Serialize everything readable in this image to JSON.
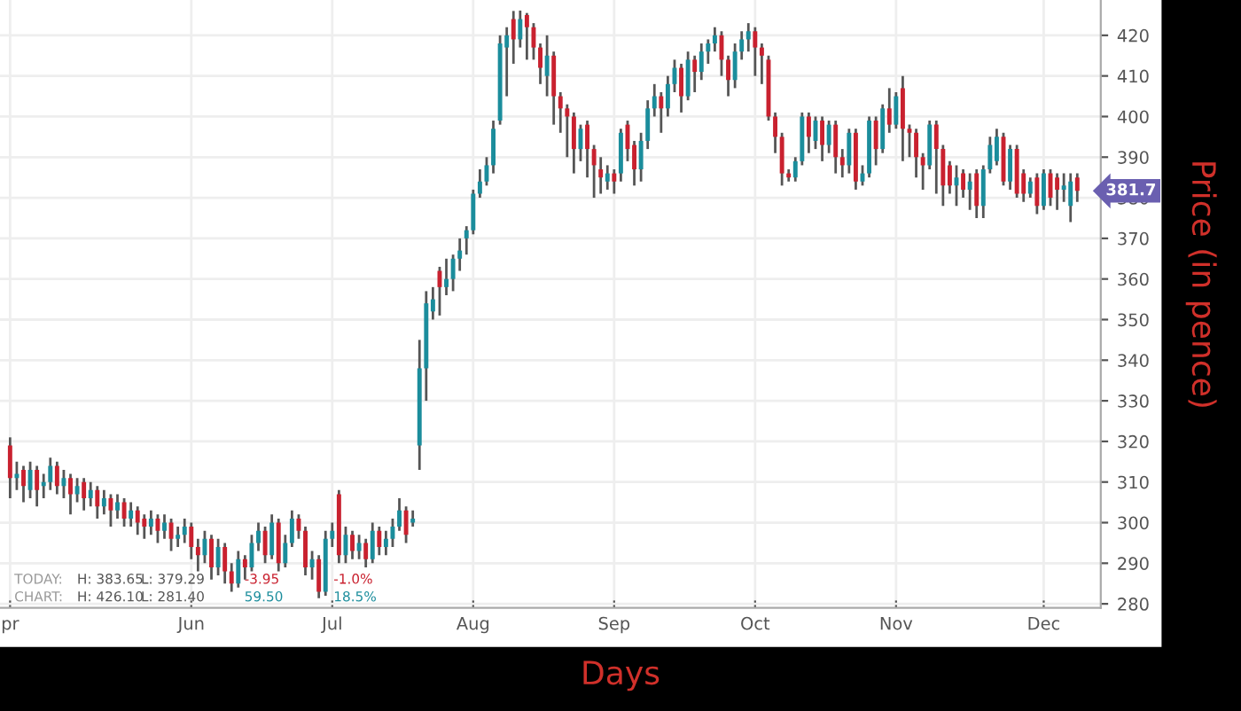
{
  "chart_data": {
    "type": "candlestick",
    "xlabel": "Days",
    "ylabel": "Price (in pence)",
    "categories": [
      "pr",
      null,
      null,
      null,
      null,
      null,
      null,
      null,
      null,
      null,
      null,
      null,
      null,
      null,
      null,
      null,
      null,
      null,
      null,
      null,
      null,
      null,
      null,
      null,
      null,
      null,
      null,
      "Jun",
      null,
      null,
      null,
      null,
      null,
      null,
      null,
      null,
      null,
      null,
      null,
      null,
      null,
      null,
      null,
      null,
      null,
      null,
      null,
      null,
      "Jul",
      null,
      null,
      null,
      null,
      null,
      null,
      null,
      null,
      null,
      null,
      null,
      null,
      null,
      null,
      null,
      null,
      null,
      null,
      null,
      null,
      "Aug",
      null,
      null,
      null,
      null,
      null,
      null,
      null,
      null,
      null,
      null,
      null,
      null,
      null,
      null,
      null,
      null,
      null,
      null,
      null,
      null,
      "Sep",
      null,
      null,
      null,
      null,
      null,
      null,
      null,
      null,
      null,
      null,
      null,
      null,
      null,
      null,
      null,
      null,
      null,
      null,
      null,
      null,
      "Oct",
      null,
      null,
      null,
      null,
      null,
      null,
      null,
      null,
      null,
      null,
      null,
      null,
      null,
      null,
      null,
      null,
      null,
      null,
      null,
      null,
      "Nov",
      null,
      null,
      null,
      null,
      null,
      null,
      null,
      null,
      null,
      null,
      null,
      null,
      null,
      null,
      null,
      null,
      null,
      null,
      null,
      null,
      null,
      "Dec",
      null,
      null,
      null,
      null,
      null
    ],
    "ohlc": [
      [
        319,
        321,
        306,
        311
      ],
      [
        311,
        315,
        308,
        312
      ],
      [
        313,
        314,
        305,
        309
      ],
      [
        308,
        315,
        306,
        313
      ],
      [
        313,
        314,
        304,
        308
      ],
      [
        309,
        312,
        306,
        310
      ],
      [
        310,
        316,
        308,
        314
      ],
      [
        314,
        315,
        307,
        309
      ],
      [
        309,
        313,
        306,
        311
      ],
      [
        311,
        312,
        302,
        307
      ],
      [
        307,
        311,
        305,
        309
      ],
      [
        310,
        311,
        303,
        306
      ],
      [
        306,
        310,
        304,
        308
      ],
      [
        308,
        309,
        301,
        304
      ],
      [
        304,
        308,
        302,
        306
      ],
      [
        306,
        307,
        299,
        303
      ],
      [
        303,
        307,
        301,
        305
      ],
      [
        305,
        306,
        299,
        301
      ],
      [
        301,
        305,
        299,
        303
      ],
      [
        303,
        304,
        297,
        300
      ],
      [
        301,
        302,
        296,
        299
      ],
      [
        299,
        303,
        297,
        301
      ],
      [
        301,
        302,
        295,
        298
      ],
      [
        298,
        302,
        296,
        300
      ],
      [
        300,
        301,
        293,
        296
      ],
      [
        296,
        299,
        294,
        297
      ],
      [
        297,
        301,
        295,
        299
      ],
      [
        299,
        300,
        291,
        294
      ],
      [
        294,
        296,
        288,
        292
      ],
      [
        292,
        298,
        290,
        296
      ],
      [
        296,
        297,
        286,
        289
      ],
      [
        289,
        296,
        287,
        294
      ],
      [
        294,
        295,
        285,
        288
      ],
      [
        288,
        290,
        283,
        285
      ],
      [
        285,
        293,
        284,
        291
      ],
      [
        291,
        292,
        286,
        289
      ],
      [
        289,
        297,
        288,
        295
      ],
      [
        295,
        300,
        293,
        298
      ],
      [
        298,
        299,
        290,
        292
      ],
      [
        292,
        302,
        291,
        300
      ],
      [
        300,
        301,
        288,
        290
      ],
      [
        290,
        297,
        289,
        295
      ],
      [
        295,
        303,
        294,
        301
      ],
      [
        301,
        302,
        296,
        298
      ],
      [
        298,
        299,
        287,
        289
      ],
      [
        289,
        293,
        286,
        291
      ],
      [
        291,
        292,
        281.4,
        283
      ],
      [
        283,
        298,
        282,
        296
      ],
      [
        296,
        300,
        294,
        298
      ],
      [
        307,
        308,
        290,
        292
      ],
      [
        292,
        299,
        290,
        297
      ],
      [
        297,
        298,
        291,
        293
      ],
      [
        293,
        297,
        291,
        295
      ],
      [
        295,
        296,
        289,
        291
      ],
      [
        291,
        300,
        290,
        298
      ],
      [
        298,
        299,
        292,
        294
      ],
      [
        294,
        298,
        292,
        296
      ],
      [
        296,
        301,
        294,
        299
      ],
      [
        299,
        306,
        298,
        303
      ],
      [
        303,
        304,
        295,
        297
      ],
      [
        300,
        303,
        299,
        301
      ],
      [
        319,
        345,
        313,
        338
      ],
      [
        338,
        357,
        330,
        354
      ],
      [
        352,
        358,
        350,
        355
      ],
      [
        362,
        363,
        351,
        358
      ],
      [
        358,
        365,
        356,
        360
      ],
      [
        360,
        366,
        357,
        365
      ],
      [
        365,
        370,
        362,
        367
      ],
      [
        370,
        373,
        366,
        372
      ],
      [
        372,
        382,
        371,
        381
      ],
      [
        381,
        387,
        380,
        384
      ],
      [
        384,
        390,
        383,
        388
      ],
      [
        388,
        399,
        386,
        397
      ],
      [
        399,
        420,
        398,
        418
      ],
      [
        417,
        422,
        405,
        420
      ],
      [
        424,
        426,
        413,
        419
      ],
      [
        419,
        426.1,
        417,
        424
      ],
      [
        425,
        425.5,
        414,
        422
      ],
      [
        422,
        423,
        414,
        417
      ],
      [
        417,
        418,
        408,
        412
      ],
      [
        410,
        420,
        405,
        415
      ],
      [
        415,
        416,
        398,
        405
      ],
      [
        405,
        406,
        396,
        402
      ],
      [
        402,
        403,
        390,
        400
      ],
      [
        400,
        401,
        386,
        392
      ],
      [
        392,
        398,
        389,
        397
      ],
      [
        398,
        399,
        385,
        392
      ],
      [
        392,
        393,
        380,
        388
      ],
      [
        387,
        390,
        381,
        385
      ],
      [
        384,
        388,
        382,
        386
      ],
      [
        386,
        387,
        381,
        384
      ],
      [
        386,
        397,
        384,
        396
      ],
      [
        398,
        399,
        389,
        392
      ],
      [
        393,
        394,
        383,
        387
      ],
      [
        387,
        396,
        384,
        394
      ],
      [
        394,
        404,
        392,
        402
      ],
      [
        402,
        408,
        400,
        405
      ],
      [
        405,
        406,
        396,
        402
      ],
      [
        402,
        410,
        400,
        408
      ],
      [
        408,
        414,
        406,
        412
      ],
      [
        412,
        413,
        401,
        405
      ],
      [
        405,
        416,
        404,
        414
      ],
      [
        414,
        415,
        406,
        411
      ],
      [
        411,
        418,
        409,
        416
      ],
      [
        416,
        419,
        413,
        418
      ],
      [
        418,
        422,
        416,
        420
      ],
      [
        420,
        421,
        410,
        414
      ],
      [
        414,
        415,
        405,
        409
      ],
      [
        409,
        418,
        407,
        416
      ],
      [
        416,
        421,
        414,
        419
      ],
      [
        419,
        423,
        416,
        421
      ],
      [
        421,
        422,
        410,
        417
      ],
      [
        417,
        418,
        408,
        415
      ],
      [
        414,
        415,
        399,
        400
      ],
      [
        400,
        401,
        391,
        395
      ],
      [
        395,
        396,
        383,
        386
      ],
      [
        386,
        387,
        384,
        385
      ],
      [
        385,
        390,
        384,
        389
      ],
      [
        389,
        401,
        388,
        400
      ],
      [
        400,
        401,
        391,
        395
      ],
      [
        394,
        400,
        392,
        399
      ],
      [
        399,
        400,
        389,
        393
      ],
      [
        393,
        399,
        391,
        398
      ],
      [
        398,
        399,
        386,
        390
      ],
      [
        390,
        392,
        385,
        388
      ],
      [
        388,
        397,
        386,
        396
      ],
      [
        396,
        397,
        382,
        384
      ],
      [
        384,
        388,
        383,
        386
      ],
      [
        386,
        400,
        385,
        399
      ],
      [
        399,
        400,
        388,
        392
      ],
      [
        392,
        403,
        391,
        402
      ],
      [
        402,
        407,
        396,
        398
      ],
      [
        398,
        406,
        397,
        405
      ],
      [
        407,
        410,
        389,
        397
      ],
      [
        397,
        398,
        390,
        396
      ],
      [
        396,
        397,
        385,
        390
      ],
      [
        390,
        391,
        382,
        388
      ],
      [
        388,
        399,
        387,
        398
      ],
      [
        398,
        399,
        381,
        392
      ],
      [
        392,
        393,
        378,
        383
      ],
      [
        388,
        389,
        381,
        383
      ],
      [
        383,
        388,
        378,
        385
      ],
      [
        386,
        387,
        380,
        382
      ],
      [
        382,
        386,
        377,
        384
      ],
      [
        386,
        387,
        375,
        378
      ],
      [
        378,
        388,
        375,
        387
      ],
      [
        387,
        395,
        386,
        393
      ],
      [
        389,
        397,
        388,
        395
      ],
      [
        395,
        396,
        383,
        384
      ],
      [
        384,
        393,
        382,
        392
      ],
      [
        392,
        393,
        380,
        381
      ],
      [
        386,
        387,
        379,
        381
      ],
      [
        381,
        385,
        380,
        384
      ],
      [
        385,
        386,
        376,
        378
      ],
      [
        378,
        387,
        377,
        386
      ],
      [
        386,
        387,
        378,
        380
      ],
      [
        385,
        386,
        377,
        382
      ],
      [
        382,
        386,
        379,
        383
      ],
      [
        378,
        386,
        374,
        384
      ],
      [
        385,
        386,
        379,
        381.7
      ]
    ],
    "ylim": [
      279,
      428.7
    ],
    "yticks": [
      280,
      290,
      300,
      310,
      320,
      330,
      340,
      350,
      360,
      370,
      380,
      390,
      400,
      410,
      420
    ],
    "grid": true,
    "annotations": [
      "TODAY:",
      "H: 383.65",
      "L: 379.29",
      "-3.95",
      "-1.0%",
      "CHART:",
      "H: 426.10",
      "L: 281.40",
      "59.50",
      "18.5%",
      "381.7"
    ]
  }
}
